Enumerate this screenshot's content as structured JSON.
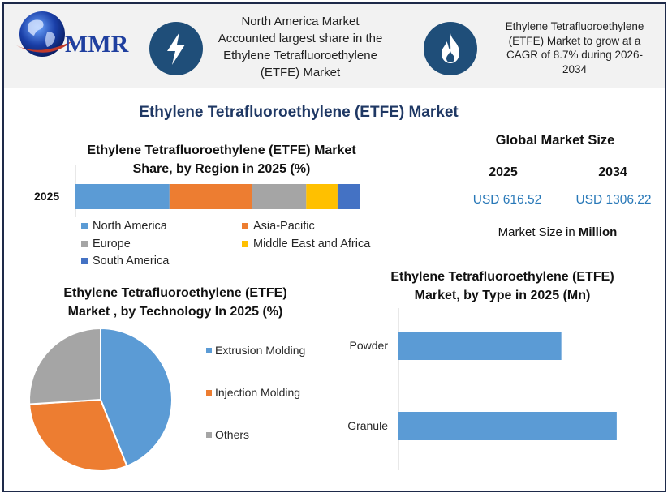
{
  "header": {
    "logo_text": "MMR",
    "box1_lines": [
      "North America Market",
      "Accounted largest share in the",
      "Ethylene Tetrafluoroethylene",
      "(ETFE) Market"
    ],
    "box2_lines": [
      "Ethylene Tetrafluoroethylene",
      "(ETFE) Market to grow at a",
      "CAGR of 8.7% during 2026-",
      "2034"
    ],
    "box1_icon": "lightning-icon",
    "box2_icon": "flame-icon"
  },
  "title": "Ethylene Tetrafluoroethylene (ETFE) Market",
  "global_market": {
    "title": "Global Market Size",
    "year_1": "2025",
    "year_2": "2034",
    "value_1": "USD 616.52",
    "value_2": "USD 1306.22",
    "unit_prefix": "Market Size in ",
    "unit_bold": "Million"
  },
  "colors": {
    "blue": "#5b9bd5",
    "orange": "#ed7d31",
    "gray": "#a5a5a5",
    "yellow": "#ffc000",
    "dark_blue": "#4472c4",
    "navy": "#1f4e79",
    "title": "#1f3864"
  },
  "chart_data": [
    {
      "type": "bar",
      "orientation": "horizontal-stacked",
      "title_lines": [
        "Ethylene Tetrafluoroethylene (ETFE) Market",
        "Share, by Region in 2025 (%)"
      ],
      "categories": [
        "2025"
      ],
      "series": [
        {
          "name": "North America",
          "values": [
            33
          ]
        },
        {
          "name": "Asia-Pacific",
          "values": [
            29
          ]
        },
        {
          "name": "Europe",
          "values": [
            19
          ]
        },
        {
          "name": "Middle East and Africa",
          "values": [
            11
          ]
        },
        {
          "name": "South America",
          "values": [
            8
          ]
        }
      ],
      "legend": "bottom"
    },
    {
      "type": "pie",
      "title_lines": [
        "Ethylene Tetrafluoroethylene (ETFE)",
        "Market , by Technology In 2025 (%)"
      ],
      "labels": [
        "Extrusion Molding",
        "Injection Molding",
        "Others"
      ],
      "values": [
        44,
        30,
        26
      ],
      "legend": "right"
    },
    {
      "type": "bar",
      "orientation": "horizontal",
      "title_lines": [
        "Ethylene Tetrafluoroethylene (ETFE)",
        "Market, by Type in 2025 (Mn)"
      ],
      "categories": [
        "Powder",
        "Granule"
      ],
      "values": [
        200,
        268
      ],
      "xlim": [
        0,
        300
      ]
    }
  ]
}
